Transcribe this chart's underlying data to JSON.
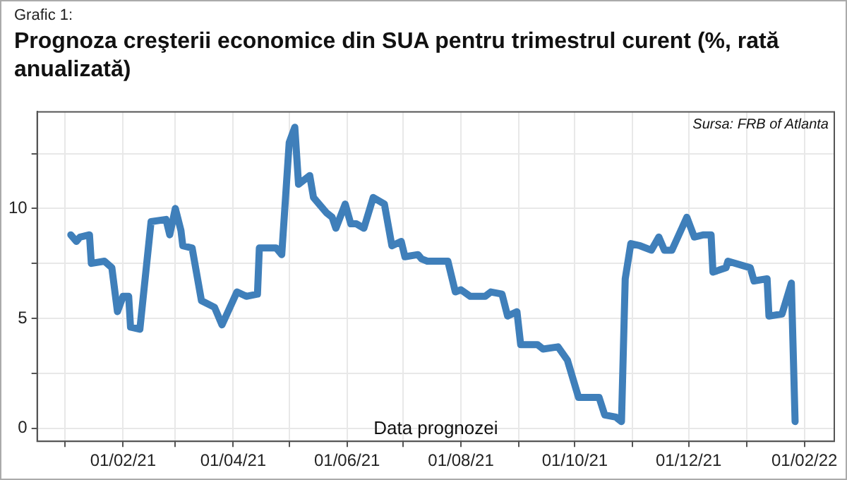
{
  "chart_data": {
    "type": "line",
    "subtitle": "Grafic 1:",
    "title": "Prognoza creşterii economice din SUA pentru trimestrul curent (%, rată anualizată)",
    "xlabel": "Data prognozei",
    "annotations": [
      "Sursa: FRB of Atlanta"
    ],
    "x": [
      "2021-01-04",
      "2021-01-07",
      "2021-01-09",
      "2021-01-14",
      "2021-01-15",
      "2021-01-22",
      "2021-01-26",
      "2021-01-29",
      "2021-02-01",
      "2021-02-04",
      "2021-02-05",
      "2021-02-10",
      "2021-02-16",
      "2021-02-24",
      "2021-02-26",
      "2021-03-01",
      "2021-03-04",
      "2021-03-05",
      "2021-03-10",
      "2021-03-15",
      "2021-03-22",
      "2021-03-26",
      "2021-04-03",
      "2021-04-08",
      "2021-04-14",
      "2021-04-15",
      "2021-04-24",
      "2021-04-27",
      "2021-05-01",
      "2021-05-04",
      "2021-05-06",
      "2021-05-12",
      "2021-05-14",
      "2021-05-21",
      "2021-05-24",
      "2021-05-26",
      "2021-05-31",
      "2021-06-03",
      "2021-06-06",
      "2021-06-10",
      "2021-06-15",
      "2021-06-21",
      "2021-06-25",
      "2021-06-30",
      "2021-07-02",
      "2021-07-09",
      "2021-07-11",
      "2021-07-14",
      "2021-07-25",
      "2021-07-29",
      "2021-08-01",
      "2021-08-06",
      "2021-08-14",
      "2021-08-17",
      "2021-08-23",
      "2021-08-26",
      "2021-08-31",
      "2021-09-02",
      "2021-09-11",
      "2021-09-14",
      "2021-09-22",
      "2021-09-27",
      "2021-10-03",
      "2021-10-14",
      "2021-10-17",
      "2021-10-23",
      "2021-10-26",
      "2021-10-28",
      "2021-10-31",
      "2021-11-05",
      "2021-11-11",
      "2021-11-15",
      "2021-11-18",
      "2021-11-22",
      "2021-11-30",
      "2021-12-04",
      "2021-12-09",
      "2021-12-13",
      "2021-12-14",
      "2021-12-21",
      "2021-12-22",
      "2022-01-03",
      "2022-01-05",
      "2022-01-12",
      "2022-01-13",
      "2022-01-20",
      "2022-01-25",
      "2022-01-27"
    ],
    "series": [
      {
        "color": "#3f7fba",
        "values": [
          8.8,
          8.5,
          8.7,
          8.8,
          7.5,
          7.6,
          7.3,
          5.3,
          6.0,
          6.0,
          4.6,
          4.5,
          9.4,
          9.5,
          8.8,
          10.0,
          9.0,
          8.3,
          8.2,
          5.8,
          5.5,
          4.7,
          6.2,
          6.0,
          6.1,
          8.2,
          8.2,
          7.9,
          13.0,
          13.7,
          11.1,
          11.5,
          10.5,
          9.8,
          9.6,
          9.1,
          10.2,
          9.3,
          9.3,
          9.1,
          10.5,
          10.2,
          8.3,
          8.5,
          7.8,
          7.9,
          7.7,
          7.6,
          7.6,
          6.2,
          6.3,
          6.0,
          6.0,
          6.2,
          6.1,
          5.1,
          5.3,
          3.8,
          3.8,
          3.6,
          3.7,
          3.1,
          1.4,
          1.4,
          0.6,
          0.5,
          0.3,
          6.8,
          8.4,
          8.3,
          8.1,
          8.7,
          8.1,
          8.1,
          9.6,
          8.7,
          8.8,
          8.8,
          7.1,
          7.3,
          7.6,
          7.3,
          6.7,
          6.8,
          5.1,
          5.2,
          6.6,
          0.3
        ]
      }
    ],
    "xlim": [
      "2020-12-17",
      "2022-02-17"
    ],
    "xticks": [
      {
        "value": "2021-01-01",
        "label": null
      },
      {
        "value": "2021-02-01",
        "label": "01/02/21"
      },
      {
        "value": "2021-03-01",
        "label": null
      },
      {
        "value": "2021-04-01",
        "label": "01/04/21"
      },
      {
        "value": "2021-05-01",
        "label": null
      },
      {
        "value": "2021-06-01",
        "label": "01/06/21"
      },
      {
        "value": "2021-07-01",
        "label": null
      },
      {
        "value": "2021-08-01",
        "label": "01/08/21"
      },
      {
        "value": "2021-09-01",
        "label": null
      },
      {
        "value": "2021-10-01",
        "label": "01/10/21"
      },
      {
        "value": "2021-11-01",
        "label": null
      },
      {
        "value": "2021-12-01",
        "label": "01/12/21"
      },
      {
        "value": "2022-01-01",
        "label": null
      },
      {
        "value": "2022-02-01",
        "label": "01/02/22"
      }
    ],
    "ylim": [
      -0.6,
      14.4
    ],
    "yticks": [
      0,
      {
        "value": 2.5,
        "label": null
      },
      5,
      {
        "value": 7.5,
        "label": null
      },
      10,
      {
        "value": 12.5,
        "label": null
      }
    ],
    "grid": true,
    "marker": "none",
    "line_style": "solid"
  }
}
